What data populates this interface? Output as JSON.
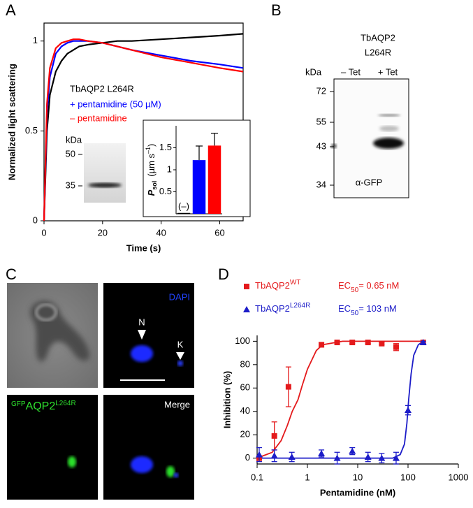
{
  "panel_labels": [
    "A",
    "B",
    "C",
    "D"
  ],
  "chart_data": [
    {
      "type": "line",
      "xlabel": "Time (s)",
      "ylabel": "Normalized light scattering",
      "x": [
        0,
        1,
        2,
        4,
        6,
        8,
        10,
        12,
        15,
        20,
        25,
        30,
        40,
        50,
        60,
        68
      ],
      "series": [
        {
          "color": "#000000",
          "values": [
            0,
            0.5,
            0.7,
            0.83,
            0.89,
            0.93,
            0.95,
            0.97,
            0.98,
            0.99,
            1.0,
            1.0,
            1.01,
            1.02,
            1.03,
            1.04
          ]
        },
        {
          "name": "+ pentamidine (50 µM)",
          "color": "#0000ff",
          "values": [
            0,
            0.6,
            0.8,
            0.93,
            0.97,
            0.99,
            1.0,
            1.0,
            1.0,
            0.99,
            0.97,
            0.95,
            0.92,
            0.89,
            0.87,
            0.85
          ]
        },
        {
          "name": "– pentamidine",
          "color": "#ff0000",
          "values": [
            0,
            0.65,
            0.85,
            0.96,
            0.99,
            1.0,
            1.01,
            1.01,
            1.0,
            0.99,
            0.97,
            0.95,
            0.91,
            0.88,
            0.85,
            0.83
          ]
        }
      ],
      "annotations": [
        "TbAQP2 L264R"
      ],
      "xlim": [
        0,
        68
      ],
      "ylim": [
        0,
        1.1
      ],
      "xticks": [
        0,
        20,
        40,
        60
      ],
      "yticks": [
        0,
        0.5,
        1
      ]
    },
    {
      "type": "bar",
      "ylabel": {
        "main": "P",
        "sub": "sol",
        "unit": "(µm s",
        "sup": "–1",
        "close": ")"
      },
      "categories": [
        null,
        null,
        null
      ],
      "values": [
        0.02,
        1.22,
        1.55
      ],
      "errors": [
        0,
        0.32,
        0.28
      ],
      "colors": [
        "#000000",
        "#0000ff",
        "#ff0000"
      ],
      "annotations": [
        "(–)"
      ],
      "ylim": [
        0,
        2
      ],
      "yticks": [
        0.5,
        1,
        1.5
      ]
    },
    {
      "type": "scatter",
      "xlabel": "Pentamidine (nM)",
      "ylabel": "Inhibition (%)",
      "log_x": true,
      "series": [
        {
          "name": "TbAQP2",
          "name_sup": "WT",
          "ec50": {
            "label": "EC",
            "sub": "50",
            "text": "= 0.65 nM"
          },
          "color": "#e41a1c",
          "marker": "square",
          "x": [
            0.11,
            0.22,
            0.42,
            1.9,
            3.9,
            7.8,
            16,
            30,
            58,
            200
          ],
          "values": [
            0,
            19,
            61,
            97,
            99,
            99,
            99,
            98,
            95,
            99
          ],
          "errors": [
            0,
            12,
            17,
            2,
            1,
            1,
            1,
            1,
            3,
            1
          ]
        },
        {
          "name": "TbAQP2",
          "name_sup": "L264R",
          "ec50": {
            "label": "EC",
            "sub": "50",
            "text": "=  103 nM"
          },
          "color": "#1c1cc8",
          "marker": "triangle",
          "x": [
            0.11,
            0.22,
            0.49,
            1.9,
            3.9,
            7.8,
            16,
            30,
            58,
            100,
            200
          ],
          "values": [
            3,
            2,
            1,
            4,
            0,
            6,
            1,
            0,
            0,
            41,
            99
          ],
          "errors": [
            6,
            5,
            4,
            3,
            5,
            3,
            4,
            4,
            5,
            4,
            1
          ]
        }
      ],
      "fits": [
        {
          "color": "#e41a1c",
          "x": [
            0.1,
            0.2,
            0.3,
            0.4,
            0.5,
            0.65,
            0.8,
            1,
            1.5,
            2,
            5,
            200
          ],
          "values": [
            0,
            5,
            15,
            28,
            40,
            50,
            63,
            76,
            92,
            97,
            100,
            100
          ]
        },
        {
          "color": "#1c1cc8",
          "x": [
            0.1,
            50,
            70,
            85,
            95,
            103,
            115,
            130,
            160,
            200
          ],
          "values": [
            0,
            0,
            3,
            12,
            30,
            50,
            72,
            88,
            97,
            100
          ]
        }
      ],
      "xlim": [
        0.1,
        1000
      ],
      "ylim": [
        -5,
        105
      ],
      "xticks": [
        0.1,
        1,
        10,
        100,
        1000
      ],
      "yticks": [
        0,
        20,
        40,
        60,
        80,
        100
      ]
    }
  ],
  "blot_a": {
    "unit": "kDa",
    "markers": [
      "50",
      "35"
    ]
  },
  "blot_b": {
    "title": [
      "TbAQP2",
      "L264R"
    ],
    "unit": "kDa",
    "lanes": [
      "– Tet",
      "+ Tet"
    ],
    "markers": [
      "72",
      "55",
      "43",
      "34"
    ],
    "antibody": "α-GFP"
  },
  "micrographs": {
    "dapi": "DAPI",
    "nucleus": "N",
    "kinetoplast": "K",
    "gfp": {
      "sup": "GFP",
      "main": "AQP2",
      "sup2": "L264R"
    },
    "merge": "Merge"
  }
}
